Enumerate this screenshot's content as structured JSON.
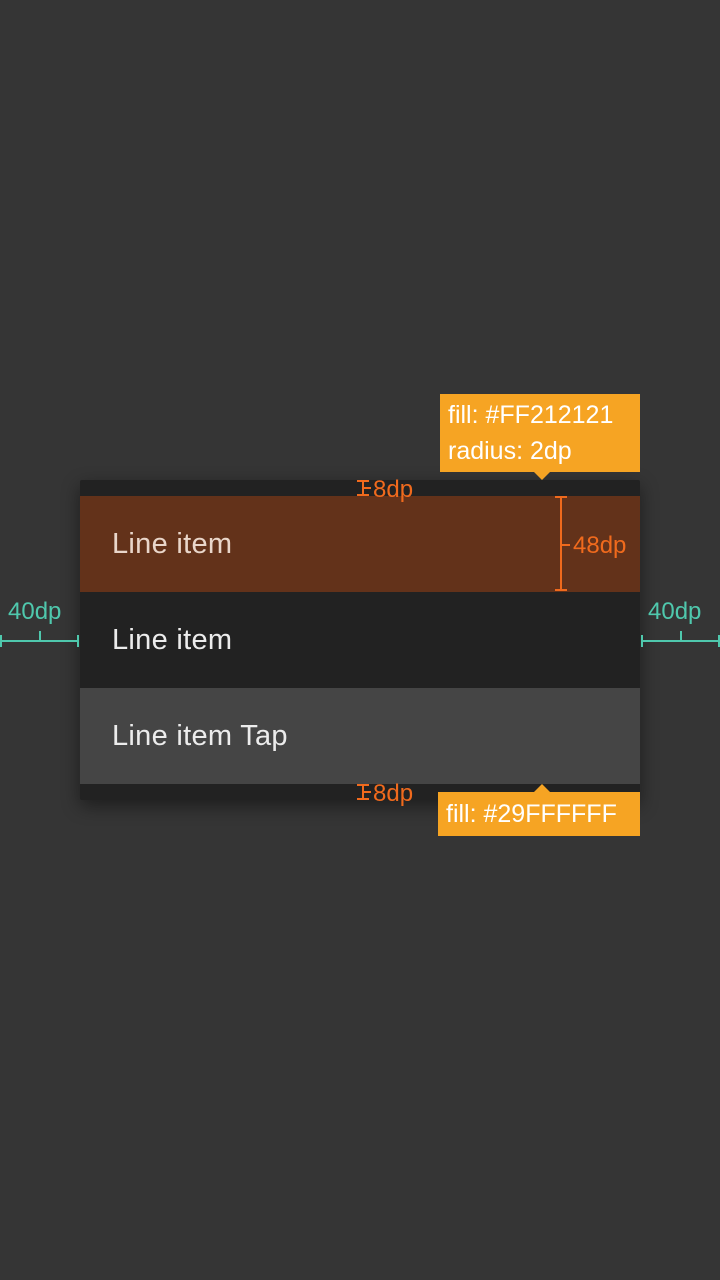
{
  "menu": {
    "items": [
      {
        "label": "Line item"
      },
      {
        "label": "Line item"
      },
      {
        "label": "Line item Tap"
      }
    ]
  },
  "annotations": {
    "top_padding": "8dp",
    "bottom_padding": "8dp",
    "item_height": "48dp",
    "left_margin": "40dp",
    "right_margin": "40dp",
    "top_callout": {
      "line1": "fill: #FF212121",
      "line2": "radius: 2dp"
    },
    "bottom_callout": {
      "line1": "fill: #29FFFFFF"
    }
  },
  "colors": {
    "background": "#353535",
    "menu_fill": "#212121",
    "highlight": "#63321a",
    "tap_fill": "#454545",
    "annotation_orange": "#f06a1d",
    "callout_yellow": "#f6a423",
    "margin_teal": "#4fc8ad"
  }
}
